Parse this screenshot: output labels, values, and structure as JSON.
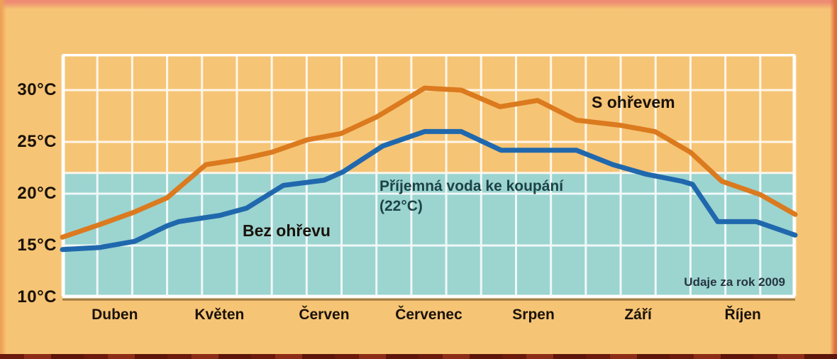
{
  "chart_data": {
    "type": "line",
    "title": "",
    "x_axis": {
      "categories": [
        "Duben",
        "Květen",
        "Červen",
        "Červenec",
        "Srpen",
        "Září",
        "Říjen"
      ],
      "range_months": [
        0,
        7
      ],
      "grid_divisions_per_month": 3
    },
    "y_axis": {
      "tick_labels": [
        "30°C",
        "25°C",
        "20°C",
        "15°C",
        "10°C"
      ],
      "tick_values": [
        30,
        25,
        20,
        15,
        10
      ],
      "ylim": [
        10,
        33.5
      ],
      "unit": "°C"
    },
    "grid": {
      "visible": true,
      "color": "#FFFFFF"
    },
    "series": [
      {
        "name": "S ohřevem",
        "id": "s-ohrevem",
        "color": "#DB7A1E",
        "points": [
          [
            0,
            15.8
          ],
          [
            0.35,
            17.0
          ],
          [
            0.68,
            18.2
          ],
          [
            1.0,
            19.6
          ],
          [
            1.37,
            22.8
          ],
          [
            1.69,
            23.3
          ],
          [
            2.0,
            24.0
          ],
          [
            2.34,
            25.2
          ],
          [
            2.66,
            25.8
          ],
          [
            3.0,
            27.4
          ],
          [
            3.2,
            28.6
          ],
          [
            3.46,
            30.2
          ],
          [
            3.81,
            30.0
          ],
          [
            4.18,
            28.4
          ],
          [
            4.54,
            29.0
          ],
          [
            4.91,
            27.1
          ],
          [
            5.33,
            26.6
          ],
          [
            5.66,
            26.0
          ],
          [
            6.0,
            24.0
          ],
          [
            6.3,
            21.2
          ],
          [
            6.67,
            19.9
          ],
          [
            7.0,
            18.0
          ]
        ]
      },
      {
        "name": "Bez ohřevu",
        "id": "bez-ohrevu",
        "color": "#2068AD",
        "points": [
          [
            0,
            14.6
          ],
          [
            0.35,
            14.8
          ],
          [
            0.69,
            15.4
          ],
          [
            1.0,
            16.9
          ],
          [
            1.11,
            17.3
          ],
          [
            1.5,
            17.9
          ],
          [
            1.76,
            18.6
          ],
          [
            2.11,
            20.8
          ],
          [
            2.5,
            21.3
          ],
          [
            2.68,
            22.1
          ],
          [
            3.06,
            24.6
          ],
          [
            3.46,
            26.0
          ],
          [
            3.81,
            26.0
          ],
          [
            4.19,
            24.2
          ],
          [
            4.91,
            24.2
          ],
          [
            5.26,
            22.8
          ],
          [
            5.57,
            21.9
          ],
          [
            5.92,
            21.2
          ],
          [
            6.02,
            20.9
          ],
          [
            6.26,
            17.3
          ],
          [
            6.63,
            17.3
          ],
          [
            7.0,
            16.0
          ]
        ]
      }
    ],
    "comfort_band": {
      "threshold_c": 22,
      "fills_down_to_c": 10,
      "color": "#9CD4D0",
      "label_line1": "Příjemná voda ke koupání",
      "label_line2": "(22°C)"
    },
    "note": "Udaje za rok 2009"
  },
  "labels": {
    "series_warm": "S ohřevem",
    "series_cold": "Bez ohřevu",
    "band_line1": "Příjemná voda ke koupání",
    "band_line2": "(22°C)",
    "note": "Udaje za rok 2009"
  },
  "colors": {
    "background": "#F6C475",
    "band": "#9CD4D0",
    "gridline": "#FFFFFF",
    "warm_line": "#DB7A1E",
    "cold_line": "#2068AD",
    "text": "#1A120A",
    "band_text": "#1C4347",
    "note_text": "#253640",
    "frame_top": "#EE8B72",
    "frame_bottom": "#6B1A0C",
    "frame_right": "#E06F3E"
  }
}
